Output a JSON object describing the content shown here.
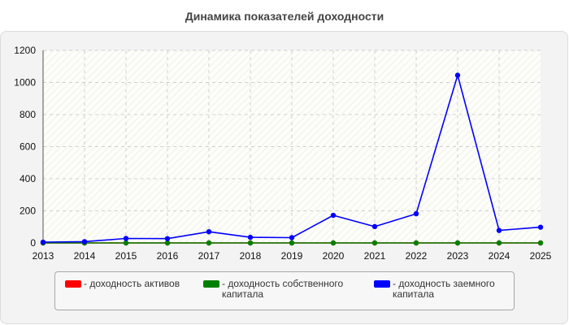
{
  "title": "Динамика показателей доходности",
  "colors": {
    "activ": "#ff0000",
    "own": "#008000",
    "borrowed": "#0000ff"
  },
  "chart_data": {
    "type": "line",
    "title": "Динамика показателей доходности",
    "x": [
      "2013",
      "2014",
      "2015",
      "2016",
      "2017",
      "2018",
      "2019",
      "2020",
      "2021",
      "2022",
      "2023",
      "2024",
      "2025"
    ],
    "yticks": [
      "0",
      "200",
      "400",
      "600",
      "800",
      "1000",
      "1200"
    ],
    "ylim": [
      0,
      1200
    ],
    "grid": true,
    "legend_position": "bottom",
    "series": [
      {
        "name": "- доходность активов",
        "color": "#ff0000",
        "values": [
          0,
          0,
          0,
          0,
          0,
          0,
          0,
          0,
          0,
          0,
          0,
          0,
          0
        ]
      },
      {
        "name": "- доходность собственного капитала",
        "color": "#008000",
        "values": [
          0,
          0,
          0,
          0,
          0,
          0,
          0,
          0,
          0,
          0,
          0,
          0,
          0
        ]
      },
      {
        "name": "- доходность заемного капитала",
        "color": "#0000ff",
        "values": [
          5,
          8,
          28,
          27,
          70,
          35,
          33,
          172,
          102,
          182,
          1045,
          78,
          98
        ]
      }
    ]
  }
}
